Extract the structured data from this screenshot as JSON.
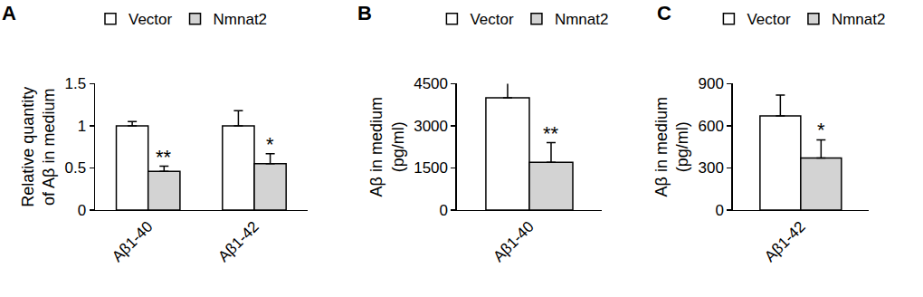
{
  "chart_data": [
    {
      "type": "bar",
      "panel": "A",
      "ylabel": [
        "Relative quantity",
        "of Aβ in medium"
      ],
      "categories": [
        "Aβ1-40",
        "Aβ1-42"
      ],
      "series": [
        {
          "name": "Vector",
          "color": "#ffffff",
          "values": [
            1.0,
            1.0
          ],
          "errors": [
            0.05,
            0.18
          ]
        },
        {
          "name": "Nmnat2",
          "color": "#d3d3d3",
          "values": [
            0.46,
            0.55
          ],
          "errors": [
            0.06,
            0.12
          ]
        }
      ],
      "annotations": [
        {
          "text": "**",
          "category": "Aβ1-40",
          "series": "Nmnat2"
        },
        {
          "text": "*",
          "category": "Aβ1-42",
          "series": "Nmnat2"
        }
      ],
      "ylim": [
        0,
        1.5
      ],
      "yticks": [
        0,
        0.5,
        1,
        1.5
      ],
      "grid": false,
      "legend": "top"
    },
    {
      "type": "bar",
      "panel": "B",
      "ylabel": [
        "Aβ in medium",
        "(pg/ml)"
      ],
      "categories": [
        "Aβ1-40"
      ],
      "series": [
        {
          "name": "Vector",
          "color": "#ffffff",
          "values": [
            4000
          ],
          "errors": [
            600
          ]
        },
        {
          "name": "Nmnat2",
          "color": "#d3d3d3",
          "values": [
            1700
          ],
          "errors": [
            700
          ]
        }
      ],
      "annotations": [
        {
          "text": "**",
          "category": "Aβ1-40",
          "series": "Nmnat2"
        }
      ],
      "ylim": [
        0,
        4500
      ],
      "yticks": [
        0,
        1500,
        3000,
        4500
      ],
      "grid": false,
      "legend": "top"
    },
    {
      "type": "bar",
      "panel": "C",
      "ylabel": [
        "Aβ in medium",
        "(pg/ml)"
      ],
      "categories": [
        "Aβ1-42"
      ],
      "series": [
        {
          "name": "Vector",
          "color": "#ffffff",
          "values": [
            670
          ],
          "errors": [
            150
          ]
        },
        {
          "name": "Nmnat2",
          "color": "#d3d3d3",
          "values": [
            370
          ],
          "errors": [
            130
          ]
        }
      ],
      "annotations": [
        {
          "text": "*",
          "category": "Aβ1-42",
          "series": "Nmnat2"
        }
      ],
      "ylim": [
        0,
        900
      ],
      "yticks": [
        0,
        300,
        600,
        900
      ],
      "grid": false,
      "legend": "top"
    }
  ]
}
